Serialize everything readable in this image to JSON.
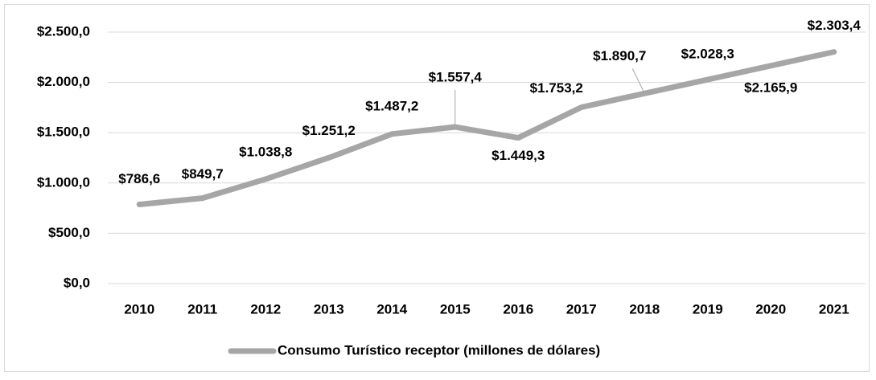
{
  "chart_data": {
    "type": "line",
    "categories": [
      "2010",
      "2011",
      "2012",
      "2013",
      "2014",
      "2015",
      "2016",
      "2017",
      "2018",
      "2019",
      "2020",
      "2021"
    ],
    "series": [
      {
        "name": "Consumo Turístico receptor (millones de dólares)",
        "color": "#a6a6a6",
        "values": [
          786.6,
          849.7,
          1038.8,
          1251.2,
          1487.2,
          1557.4,
          1449.3,
          1753.2,
          1890.7,
          2028.3,
          2165.9,
          2303.4
        ],
        "value_labels": [
          "$786,6",
          "$849,7",
          "$1.038,8",
          "$1.251,2",
          "$1.487,2",
          "$1.557,4",
          "$1.449,3",
          "$1.753,2",
          "$1.890,7",
          "$2.028,3",
          "$2.165,9",
          "$2.303,4"
        ]
      }
    ],
    "ylim": [
      0,
      2500
    ],
    "yticks": [
      {
        "value": 0,
        "label": "$0,0"
      },
      {
        "value": 500,
        "label": "$500,0"
      },
      {
        "value": 1000,
        "label": "$1.000,0"
      },
      {
        "value": 1500,
        "label": "$1.500,0"
      },
      {
        "value": 2000,
        "label": "$2.000,0"
      },
      {
        "value": 2500,
        "label": "$2.500,0"
      }
    ],
    "grid": true,
    "legend": "bottom"
  }
}
